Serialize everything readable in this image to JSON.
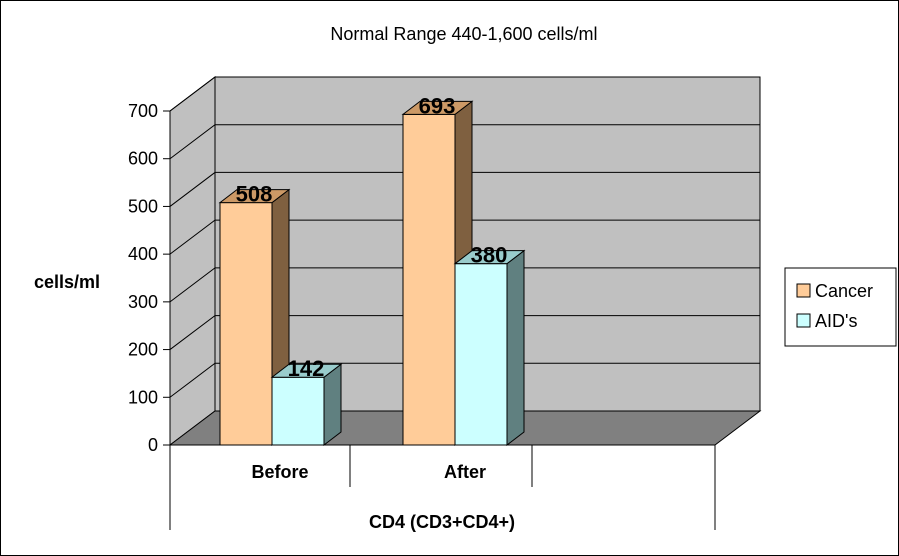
{
  "chart_data": {
    "type": "bar",
    "title": "Normal Range  440-1,600 cells/ml",
    "ylabel": "cells/ml",
    "xlabel": "CD4 (CD3+CD4+)",
    "categories": [
      "Before",
      "After"
    ],
    "series": [
      {
        "name": "Cancer",
        "values": [
          508,
          693
        ],
        "color": "#FFCC99",
        "side_color": "#7F6040",
        "top_color": "#CC9966"
      },
      {
        "name": "AID's",
        "values": [
          142,
          380
        ],
        "color": "#CCFFFF",
        "side_color": "#608080",
        "top_color": "#99CCCC"
      }
    ],
    "ylim": [
      0,
      700
    ],
    "yticks": [
      "0",
      "100",
      "200",
      "300",
      "400",
      "500",
      "600",
      "700"
    ],
    "data_labels": [
      [
        "508",
        "693"
      ],
      [
        "142",
        "380"
      ]
    ],
    "grid": true,
    "legend_position": "right",
    "three_d": true,
    "colors": {
      "wall": "#C0C0C0",
      "floor": "#808080",
      "grid": "#000000"
    }
  }
}
